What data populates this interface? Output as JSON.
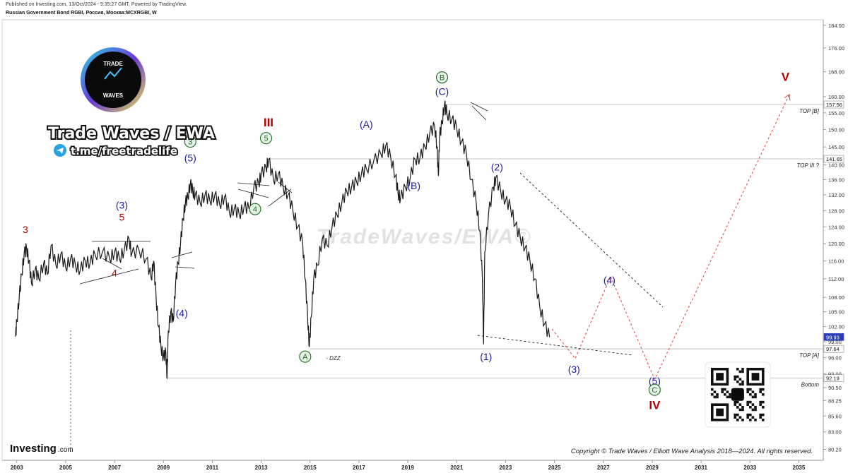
{
  "header": {
    "published": "Published on Investing.com, 13/Oct/2024 - 9:35:27 GMT, Powered by TradingView.",
    "symbol": "Russian Government Bond RGBI, Россия, Москва:MCXRGBI, W"
  },
  "branding": {
    "logo_line1": "TRADE",
    "logo_line2": "WAVES",
    "name": "Trade Waves / EWA",
    "telegram": "t.me/freetradelife",
    "watermark": "TradeWaves/EWA©",
    "investing": "Investing",
    "investing_suffix": ".com",
    "copyright": "Copyright © Trade Waves / Elliott Wave Analysis 2018—2024. All rights reserved."
  },
  "colors": {
    "price": "#1a1a1a",
    "wave_blue": "#1c1c9c",
    "wave_red": "#b40000",
    "wave_green": "#1f6b1f",
    "projection": "#e05050",
    "current_tag": "#2c3eb5"
  },
  "chart_data": {
    "type": "line",
    "title": "Russian Government Bond RGBI, Россия, Москва:MCXRGBI, W",
    "xlabel": "",
    "ylabel": "",
    "x_ticks": [
      "2003",
      "2005",
      "2007",
      "2009",
      "2011",
      "2013",
      "2015",
      "2017",
      "2019",
      "2021",
      "2023",
      "2025",
      "2027",
      "2029",
      "2031",
      "2033",
      "2035"
    ],
    "xlim": [
      2002.4,
      2036.0
    ],
    "y_ticks": [
      "80.20",
      "83.00",
      "85.60",
      "88.25",
      "90.50",
      "93.00",
      "96.00",
      "99.00",
      "102.00",
      "105.00",
      "108.00",
      "112.00",
      "116.00",
      "120.00",
      "124.00",
      "128.00",
      "132.00",
      "136.00",
      "140.00",
      "145.00",
      "150.00",
      "155.00",
      "160.00",
      "168.00",
      "176.00",
      "184.00"
    ],
    "ylim": [
      78.5,
      186
    ],
    "y_scale": "log",
    "grid": false,
    "series": [
      {
        "values": [
          [
            2002.95,
            100.0
          ],
          [
            2003.0,
            103.0
          ],
          [
            2003.1,
            108.0
          ],
          [
            2003.2,
            113.0
          ],
          [
            2003.3,
            117.5
          ],
          [
            2003.4,
            119.0
          ],
          [
            2003.5,
            116.0
          ],
          [
            2003.6,
            111.0
          ],
          [
            2003.75,
            114.0
          ],
          [
            2003.9,
            112.0
          ],
          [
            2004.1,
            115.5
          ],
          [
            2004.25,
            113.0
          ],
          [
            2004.4,
            119.5
          ],
          [
            2004.6,
            115.0
          ],
          [
            2004.8,
            117.5
          ],
          [
            2005.0,
            114.5
          ],
          [
            2005.2,
            116.5
          ],
          [
            2005.4,
            115.0
          ],
          [
            2005.6,
            114.0
          ],
          [
            2005.8,
            116.0
          ],
          [
            2006.0,
            115.5
          ],
          [
            2006.2,
            117.5
          ],
          [
            2006.5,
            118.0
          ],
          [
            2006.8,
            116.5
          ],
          [
            2007.0,
            118.0
          ],
          [
            2007.2,
            116.5
          ],
          [
            2007.4,
            118.5
          ],
          [
            2007.6,
            121.0
          ],
          [
            2007.7,
            117.5
          ],
          [
            2008.0,
            118.5
          ],
          [
            2008.3,
            116.5
          ],
          [
            2008.5,
            112.0
          ],
          [
            2008.6,
            116.0
          ],
          [
            2008.7,
            108.0
          ],
          [
            2008.8,
            102.0
          ],
          [
            2008.9,
            98.0
          ],
          [
            2009.0,
            96.0
          ],
          [
            2009.1,
            97.0
          ],
          [
            2009.15,
            92.2
          ],
          [
            2009.2,
            101.0
          ],
          [
            2009.3,
            105.0
          ],
          [
            2009.4,
            103.0
          ],
          [
            2009.5,
            111.0
          ],
          [
            2009.6,
            115.5
          ],
          [
            2009.7,
            120.0
          ],
          [
            2009.8,
            126.0
          ],
          [
            2009.9,
            130.0
          ],
          [
            2010.0,
            131.5
          ],
          [
            2010.1,
            135.0
          ],
          [
            2010.2,
            133.0
          ],
          [
            2010.3,
            132.0
          ],
          [
            2010.5,
            130.0
          ],
          [
            2010.7,
            132.0
          ],
          [
            2010.9,
            130.5
          ],
          [
            2011.1,
            132.0
          ],
          [
            2011.3,
            129.5
          ],
          [
            2011.5,
            131.5
          ],
          [
            2011.7,
            127.5
          ],
          [
            2011.9,
            128.5
          ],
          [
            2012.1,
            127.0
          ],
          [
            2012.3,
            129.0
          ],
          [
            2012.5,
            128.5
          ],
          [
            2012.7,
            134.0
          ],
          [
            2012.9,
            135.0
          ],
          [
            2013.0,
            137.5
          ],
          [
            2013.2,
            139.0
          ],
          [
            2013.3,
            141.5
          ],
          [
            2013.5,
            136.0
          ],
          [
            2013.7,
            137.5
          ],
          [
            2013.9,
            134.0
          ],
          [
            2014.1,
            132.0
          ],
          [
            2014.3,
            128.0
          ],
          [
            2014.5,
            124.0
          ],
          [
            2014.7,
            120.0
          ],
          [
            2014.8,
            112.0
          ],
          [
            2014.9,
            104.0
          ],
          [
            2014.97,
            98.0
          ],
          [
            2015.05,
            104.0
          ],
          [
            2015.15,
            112.0
          ],
          [
            2015.3,
            115.0
          ],
          [
            2015.5,
            121.0
          ],
          [
            2015.7,
            119.5
          ],
          [
            2015.9,
            124.0
          ],
          [
            2016.1,
            127.0
          ],
          [
            2016.3,
            130.0
          ],
          [
            2016.5,
            133.0
          ],
          [
            2016.7,
            134.0
          ],
          [
            2016.9,
            135.5
          ],
          [
            2017.1,
            137.5
          ],
          [
            2017.3,
            139.0
          ],
          [
            2017.6,
            141.0
          ],
          [
            2017.9,
            143.0
          ],
          [
            2018.1,
            145.5
          ],
          [
            2018.3,
            142.0
          ],
          [
            2018.5,
            137.0
          ],
          [
            2018.6,
            132.5
          ],
          [
            2018.7,
            131.0
          ],
          [
            2018.9,
            134.0
          ],
          [
            2019.1,
            136.5
          ],
          [
            2019.3,
            141.5
          ],
          [
            2019.5,
            142.0
          ],
          [
            2019.7,
            145.0
          ],
          [
            2019.9,
            149.0
          ],
          [
            2020.1,
            151.0
          ],
          [
            2020.2,
            145.0
          ],
          [
            2020.25,
            137.0
          ],
          [
            2020.3,
            148.0
          ],
          [
            2020.4,
            152.0
          ],
          [
            2020.5,
            157.5
          ],
          [
            2020.6,
            155.0
          ],
          [
            2020.8,
            153.0
          ],
          [
            2021.0,
            150.5
          ],
          [
            2021.2,
            146.5
          ],
          [
            2021.4,
            143.0
          ],
          [
            2021.6,
            136.0
          ],
          [
            2021.8,
            130.0
          ],
          [
            2021.95,
            123.0
          ],
          [
            2022.05,
            112.0
          ],
          [
            2022.1,
            98.5
          ],
          [
            2022.15,
            118.0
          ],
          [
            2022.3,
            127.0
          ],
          [
            2022.5,
            134.0
          ],
          [
            2022.6,
            136.5
          ],
          [
            2022.8,
            133.0
          ],
          [
            2023.0,
            130.5
          ],
          [
            2023.2,
            129.0
          ],
          [
            2023.4,
            124.5
          ],
          [
            2023.6,
            121.5
          ],
          [
            2023.8,
            119.0
          ],
          [
            2024.0,
            116.0
          ],
          [
            2024.2,
            112.0
          ],
          [
            2024.4,
            106.0
          ],
          [
            2024.6,
            102.5
          ],
          [
            2024.8,
            99.9
          ]
        ]
      }
    ],
    "price_labels": [
      {
        "text": "157.56",
        "value": 157.56,
        "bg": "#ffffff"
      },
      {
        "text": "141.65",
        "value": 141.65,
        "bg": "#ffffff"
      },
      {
        "text": "99.93",
        "value": 99.93,
        "bg": "#2c3eb5"
      },
      {
        "text": "97.64",
        "value": 97.64,
        "bg": "#ffffff"
      },
      {
        "text": "92.19",
        "value": 92.19,
        "bg": "#ffffff"
      }
    ],
    "levels": [
      {
        "label": "TOP [B]",
        "value": 157.56,
        "from": 2020.5
      },
      {
        "label": "TOP III ?",
        "value": 141.65,
        "from": 2013.3
      },
      {
        "label": "TOP [A]",
        "value": 97.64,
        "from": 2015.0
      },
      {
        "label": "Bottom",
        "value": 92.19,
        "from": 2009.15
      }
    ],
    "annotations": [
      {
        "text": "3",
        "x": 2003.35,
        "y": 122.5,
        "color": "red"
      },
      {
        "text": "4",
        "x": 2007.0,
        "y": 112.5,
        "color": "red"
      },
      {
        "text": "5",
        "x": 2007.3,
        "y": 125.5,
        "color": "red"
      },
      {
        "text": "(3)",
        "x": 2007.3,
        "y": 128.5,
        "color": "blue"
      },
      {
        "text": "(4)",
        "x": 2009.75,
        "y": 104.0,
        "color": "blue"
      },
      {
        "text": "(5)",
        "x": 2010.1,
        "y": 141.0,
        "color": "blue"
      },
      {
        "text": "3",
        "x": 2010.1,
        "y": 145.5,
        "color": "green",
        "circled": true
      },
      {
        "text": "4",
        "x": 2012.75,
        "y": 127.5,
        "color": "green",
        "circled": true
      },
      {
        "text": "5",
        "x": 2013.2,
        "y": 146.5,
        "color": "green",
        "circled": true
      },
      {
        "text": "III",
        "x": 2013.3,
        "y": 151.0,
        "color": "red",
        "bold": true
      },
      {
        "text": "(A)",
        "x": 2017.3,
        "y": 150.5,
        "color": "blue"
      },
      {
        "text": "(B)",
        "x": 2019.25,
        "y": 133.5,
        "color": "blue"
      },
      {
        "text": "B",
        "x": 2020.4,
        "y": 165.0,
        "color": "green",
        "circled": true
      },
      {
        "text": "(C)",
        "x": 2020.4,
        "y": 160.5,
        "color": "blue"
      },
      {
        "text": "A",
        "x": 2014.8,
        "y": 95.5,
        "color": "green",
        "circled": true
      },
      {
        "text": "- DZZ",
        "x": 2015.65,
        "y": 95.5,
        "color": "dark",
        "small": true
      },
      {
        "text": "(1)",
        "x": 2022.2,
        "y": 95.5,
        "color": "blue"
      },
      {
        "text": "(2)",
        "x": 2022.65,
        "y": 138.5,
        "color": "blue"
      },
      {
        "text": "(3)",
        "x": 2025.8,
        "y": 93.2,
        "color": "blue"
      },
      {
        "text": "(4)",
        "x": 2027.25,
        "y": 111.0,
        "color": "blue"
      },
      {
        "text": "(5)",
        "x": 2029.1,
        "y": 91.1,
        "color": "blue"
      },
      {
        "text": "C",
        "x": 2029.1,
        "y": 89.5,
        "color": "green",
        "circled": true
      },
      {
        "text": "IV",
        "x": 2029.1,
        "y": 86.8,
        "color": "red",
        "bold": true
      },
      {
        "text": "V",
        "x": 2034.45,
        "y": 165.0,
        "color": "red",
        "bold": true
      }
    ],
    "projection": [
      [
        2024.9,
        101.5
      ],
      [
        2025.85,
        95.8
      ],
      [
        2027.3,
        112.5
      ],
      [
        2029.1,
        92.0
      ],
      [
        2034.6,
        160.5
      ]
    ]
  }
}
